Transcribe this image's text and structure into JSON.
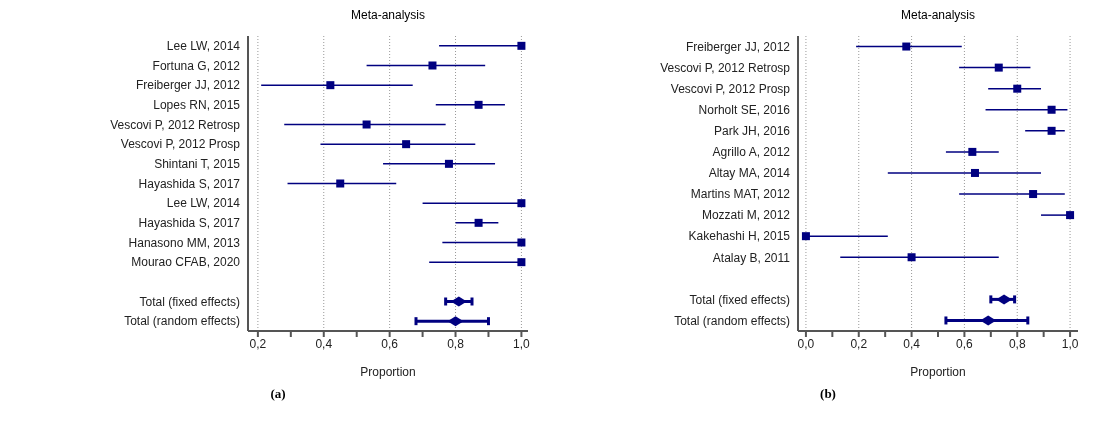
{
  "chart_data": [
    {
      "type": "scatter",
      "orientation": "horizontal",
      "title": "Meta-analysis",
      "xlabel": "Proportion",
      "annotations": [
        "(a)"
      ],
      "grid": "x",
      "categories": [
        "Lee LW, 2014",
        "Fortuna G, 2012",
        "Freiberger JJ, 2012",
        "Lopes RN, 2015",
        "Vescovi P, 2012 Retrosp",
        "Vescovi P, 2012 Prosp",
        "Shintani T, 2015",
        "Hayashida S, 2017",
        "Lee LW, 2014",
        "Hayashida S, 2017",
        "Hanasono MM, 2013",
        "Mourao CFAB, 2020",
        null,
        "Total (fixed effects)",
        "Total (random effects)"
      ],
      "xlim": [
        0.17,
        1.02
      ],
      "xticks": [
        {
          "value": 0.2,
          "label": "0,2"
        },
        {
          "value": 0.3,
          "label": null
        },
        {
          "value": 0.4,
          "label": "0,4"
        },
        {
          "value": 0.5,
          "label": null
        },
        {
          "value": 0.6,
          "label": "0,6"
        },
        {
          "value": 0.7,
          "label": null
        },
        {
          "value": 0.8,
          "label": "0,8"
        },
        {
          "value": 0.9,
          "label": null
        },
        {
          "value": 1.0,
          "label": "1,0"
        }
      ],
      "series": [
        {
          "color": "#000080",
          "marker": "square",
          "values": [
            1.0,
            0.73,
            0.42,
            0.87,
            0.53,
            0.65,
            0.78,
            0.45,
            1.0,
            0.87,
            1.0,
            1.0,
            null,
            null,
            null
          ],
          "errors": [
            [
              0.75,
              1.0
            ],
            [
              0.53,
              0.89
            ],
            [
              0.21,
              0.67
            ],
            [
              0.74,
              0.95
            ],
            [
              0.28,
              0.77
            ],
            [
              0.39,
              0.86
            ],
            [
              0.58,
              0.92
            ],
            [
              0.29,
              0.62
            ],
            [
              0.7,
              1.0
            ],
            [
              0.8,
              0.93
            ],
            [
              0.76,
              1.0
            ],
            [
              0.72,
              1.0
            ],
            null,
            null,
            null
          ]
        },
        {
          "color": "#000080",
          "marker": "diamond",
          "values": [
            null,
            null,
            null,
            null,
            null,
            null,
            null,
            null,
            null,
            null,
            null,
            null,
            null,
            0.81,
            0.8
          ],
          "errors": [
            null,
            null,
            null,
            null,
            null,
            null,
            null,
            null,
            null,
            null,
            null,
            null,
            null,
            [
              0.77,
              0.85
            ],
            [
              0.68,
              0.9
            ]
          ]
        }
      ]
    },
    {
      "type": "scatter",
      "orientation": "horizontal",
      "title": "Meta-analysis",
      "xlabel": "Proportion",
      "annotations": [
        "(b)"
      ],
      "grid": "x",
      "categories": [
        "Freiberger JJ, 2012",
        "Vescovi P, 2012 Retrosp",
        "Vescovi P, 2012 Prosp",
        "Norholt SE, 2016",
        "Park JH, 2016",
        "Agrillo A, 2012",
        "Altay MA, 2014",
        "Martins MAT, 2012",
        "Mozzati M, 2012",
        "Kakehashi H, 2015",
        "Atalay B, 2011",
        null,
        "Total (fixed effects)",
        "Total (random effects)"
      ],
      "xlim": [
        -0.03,
        1.03
      ],
      "xticks": [
        {
          "value": 0,
          "label": "0,0"
        },
        {
          "value": 0.1,
          "label": null
        },
        {
          "value": 0.2,
          "label": "0,2"
        },
        {
          "value": 0.3,
          "label": null
        },
        {
          "value": 0.4,
          "label": "0,4"
        },
        {
          "value": 0.5,
          "label": null
        },
        {
          "value": 0.6,
          "label": "0,6"
        },
        {
          "value": 0.7,
          "label": null
        },
        {
          "value": 0.8,
          "label": "0,8"
        },
        {
          "value": 0.9,
          "label": null
        },
        {
          "value": 1.0,
          "label": "1,0"
        }
      ],
      "series": [
        {
          "color": "#000080",
          "marker": "square",
          "values": [
            0.38,
            0.73,
            0.8,
            0.93,
            0.93,
            0.63,
            0.64,
            0.86,
            1.0,
            0.0,
            0.4,
            null,
            null,
            null
          ],
          "errors": [
            [
              0.19,
              0.59
            ],
            [
              0.58,
              0.85
            ],
            [
              0.69,
              0.89
            ],
            [
              0.68,
              0.99
            ],
            [
              0.83,
              0.98
            ],
            [
              0.53,
              0.73
            ],
            [
              0.31,
              0.89
            ],
            [
              0.58,
              0.98
            ],
            [
              0.89,
              1.0
            ],
            [
              0.0,
              0.31
            ],
            [
              0.13,
              0.73
            ],
            null,
            null,
            null
          ]
        },
        {
          "color": "#000080",
          "marker": "diamond",
          "values": [
            null,
            null,
            null,
            null,
            null,
            null,
            null,
            null,
            null,
            null,
            null,
            null,
            0.75,
            0.69
          ],
          "errors": [
            null,
            null,
            null,
            null,
            null,
            null,
            null,
            null,
            null,
            null,
            null,
            null,
            [
              0.7,
              0.79
            ],
            [
              0.53,
              0.84
            ]
          ]
        }
      ]
    }
  ]
}
